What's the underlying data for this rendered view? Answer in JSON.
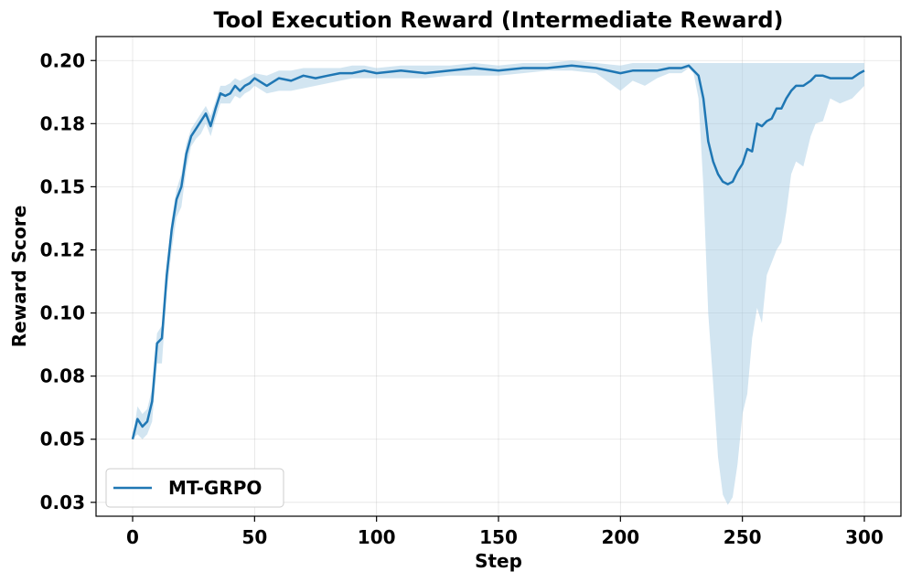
{
  "chart_data": {
    "type": "line",
    "title": "Tool Execution Reward (Intermediate Reward)",
    "xlabel": "Step",
    "ylabel": "Reward Score",
    "xlim": [
      -15,
      315
    ],
    "ylim": [
      0.0195,
      0.2095
    ],
    "x_ticks": [
      0,
      50,
      100,
      150,
      200,
      250,
      300
    ],
    "x_tick_labels": [
      "0",
      "50",
      "100",
      "150",
      "200",
      "250",
      "300"
    ],
    "y_ticks": [
      0.025,
      0.05,
      0.075,
      0.1,
      0.125,
      0.15,
      0.175,
      0.2
    ],
    "y_tick_labels": [
      "0.03",
      "0.05",
      "0.08",
      "0.10",
      "0.12",
      "0.15",
      "0.18",
      "0.20"
    ],
    "grid": true,
    "legend_position": "lower-left",
    "series": [
      {
        "name": "MT-GRPO",
        "color": "#1f77b4",
        "band_color": "#a6cbe4",
        "x": [
          0,
          2,
          4,
          6,
          8,
          10,
          12,
          14,
          16,
          18,
          20,
          22,
          24,
          26,
          28,
          30,
          32,
          34,
          36,
          38,
          40,
          42,
          44,
          46,
          48,
          50,
          55,
          60,
          65,
          70,
          75,
          80,
          85,
          90,
          95,
          100,
          110,
          120,
          130,
          140,
          150,
          160,
          170,
          180,
          190,
          200,
          205,
          210,
          215,
          220,
          225,
          228,
          230,
          232,
          234,
          236,
          238,
          240,
          242,
          244,
          246,
          248,
          250,
          252,
          254,
          256,
          258,
          260,
          262,
          264,
          266,
          268,
          270,
          272,
          275,
          278,
          280,
          283,
          286,
          290,
          295,
          298,
          300
        ],
        "y": [
          0.05,
          0.058,
          0.055,
          0.057,
          0.065,
          0.088,
          0.09,
          0.115,
          0.133,
          0.145,
          0.15,
          0.163,
          0.17,
          0.173,
          0.176,
          0.179,
          0.174,
          0.181,
          0.187,
          0.186,
          0.187,
          0.19,
          0.188,
          0.19,
          0.191,
          0.193,
          0.19,
          0.193,
          0.192,
          0.194,
          0.193,
          0.194,
          0.195,
          0.195,
          0.196,
          0.195,
          0.196,
          0.195,
          0.196,
          0.197,
          0.196,
          0.197,
          0.197,
          0.198,
          0.197,
          0.195,
          0.196,
          0.196,
          0.196,
          0.197,
          0.197,
          0.198,
          0.196,
          0.194,
          0.185,
          0.168,
          0.16,
          0.155,
          0.152,
          0.151,
          0.152,
          0.156,
          0.159,
          0.165,
          0.164,
          0.175,
          0.174,
          0.176,
          0.177,
          0.181,
          0.181,
          0.185,
          0.188,
          0.19,
          0.19,
          0.192,
          0.194,
          0.194,
          0.193,
          0.193,
          0.193,
          0.195,
          0.196
        ],
        "lower": [
          0.05,
          0.052,
          0.05,
          0.052,
          0.057,
          0.08,
          0.08,
          0.108,
          0.125,
          0.138,
          0.142,
          0.157,
          0.166,
          0.169,
          0.171,
          0.175,
          0.17,
          0.177,
          0.183,
          0.183,
          0.183,
          0.186,
          0.185,
          0.187,
          0.188,
          0.19,
          0.187,
          0.188,
          0.188,
          0.189,
          0.19,
          0.191,
          0.192,
          0.193,
          0.193,
          0.193,
          0.193,
          0.193,
          0.194,
          0.194,
          0.194,
          0.195,
          0.196,
          0.196,
          0.195,
          0.188,
          0.192,
          0.19,
          0.193,
          0.195,
          0.195,
          0.197,
          0.195,
          0.185,
          0.15,
          0.1,
          0.072,
          0.043,
          0.028,
          0.024,
          0.027,
          0.04,
          0.06,
          0.068,
          0.09,
          0.102,
          0.096,
          0.115,
          0.12,
          0.125,
          0.128,
          0.14,
          0.155,
          0.16,
          0.158,
          0.17,
          0.175,
          0.176,
          0.185,
          0.183,
          0.185,
          0.188,
          0.19
        ],
        "upper": [
          0.05,
          0.063,
          0.06,
          0.062,
          0.07,
          0.092,
          0.095,
          0.119,
          0.137,
          0.149,
          0.155,
          0.167,
          0.173,
          0.176,
          0.179,
          0.182,
          0.178,
          0.184,
          0.19,
          0.19,
          0.191,
          0.193,
          0.192,
          0.193,
          0.194,
          0.195,
          0.194,
          0.196,
          0.196,
          0.197,
          0.197,
          0.197,
          0.197,
          0.198,
          0.198,
          0.197,
          0.198,
          0.198,
          0.198,
          0.199,
          0.198,
          0.199,
          0.199,
          0.2,
          0.199,
          0.198,
          0.199,
          0.199,
          0.199,
          0.199,
          0.199,
          0.199,
          0.199,
          0.199,
          0.199,
          0.199,
          0.199,
          0.199,
          0.199,
          0.199,
          0.199,
          0.199,
          0.199,
          0.199,
          0.199,
          0.199,
          0.199,
          0.199,
          0.199,
          0.199,
          0.199,
          0.199,
          0.199,
          0.199,
          0.199,
          0.199,
          0.199,
          0.199,
          0.199,
          0.199,
          0.199,
          0.199,
          0.199
        ]
      }
    ]
  }
}
